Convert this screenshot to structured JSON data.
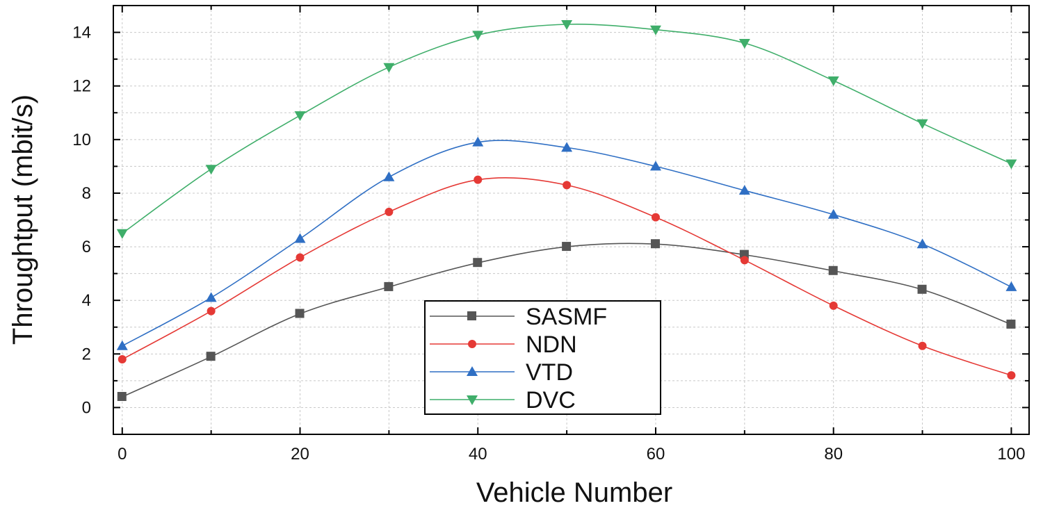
{
  "chart_data": {
    "type": "line",
    "title": "",
    "xlabel": "Vehicle Number",
    "ylabel": "Throughtput (mbit/s)",
    "xlim": [
      -1,
      102
    ],
    "ylim": [
      -1,
      15
    ],
    "x_ticks": [
      0,
      20,
      40,
      60,
      80,
      100
    ],
    "y_ticks": [
      0,
      2,
      4,
      6,
      8,
      10,
      12,
      14
    ],
    "x_tick_labels": [
      "0",
      "20",
      "40",
      "60",
      "80",
      "100"
    ],
    "y_tick_labels": [
      "0",
      "2",
      "4",
      "6",
      "8",
      "10",
      "12",
      "14"
    ],
    "grid": true,
    "legend_position": "bottom-center",
    "x": [
      0,
      10,
      20,
      30,
      40,
      50,
      60,
      70,
      80,
      90,
      100
    ],
    "series": [
      {
        "name": "SASMF",
        "color": "#555555",
        "marker": "square",
        "values": [
          0.4,
          1.9,
          3.5,
          4.5,
          5.4,
          6.0,
          6.1,
          5.7,
          5.1,
          4.4,
          3.1
        ]
      },
      {
        "name": "NDN",
        "color": "#e53935",
        "marker": "circle",
        "values": [
          1.8,
          3.6,
          5.6,
          7.3,
          8.5,
          8.3,
          7.1,
          5.5,
          3.8,
          2.3,
          1.2
        ]
      },
      {
        "name": "VTD",
        "color": "#2f6fc4",
        "marker": "triangle-up",
        "values": [
          2.3,
          4.1,
          6.3,
          8.6,
          9.9,
          9.7,
          9.0,
          8.1,
          7.2,
          6.1,
          4.5
        ]
      },
      {
        "name": "DVC",
        "color": "#3fae6a",
        "marker": "triangle-down",
        "values": [
          6.5,
          8.9,
          10.9,
          12.7,
          13.9,
          14.3,
          14.1,
          13.6,
          12.2,
          10.6,
          9.1
        ]
      }
    ]
  }
}
